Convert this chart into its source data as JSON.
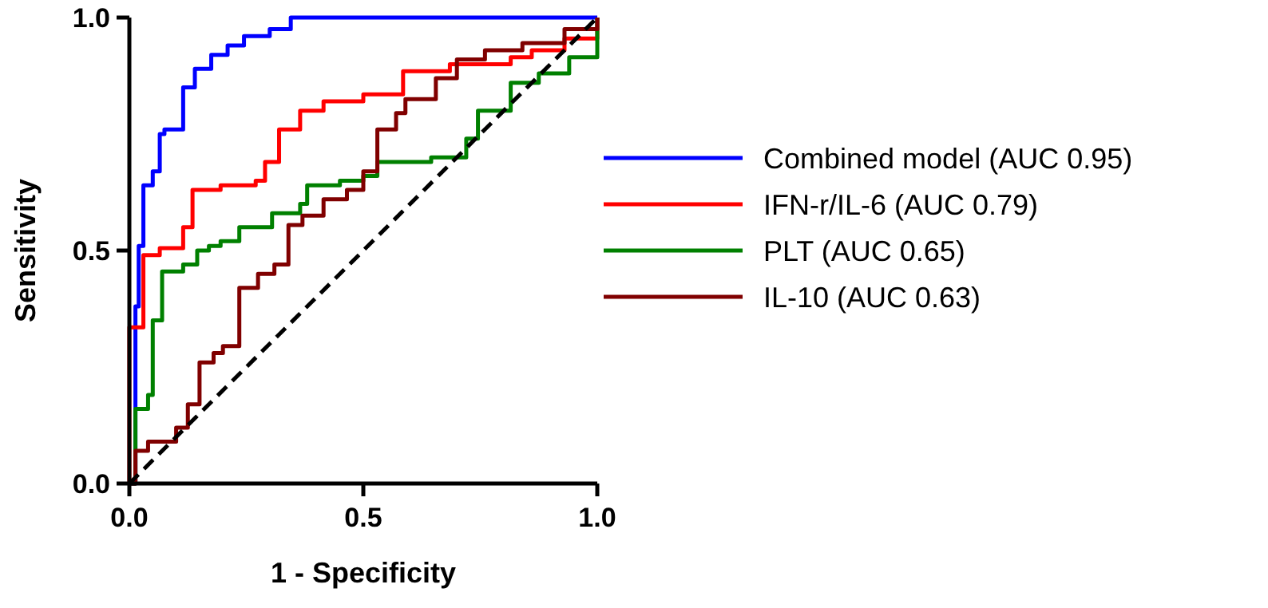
{
  "chart_data": {
    "type": "step",
    "xlabel": "1 - Specificity",
    "ylabel": "Sensitivity",
    "xlim": [
      0,
      1
    ],
    "ylim": [
      0,
      1
    ],
    "xticks": [
      {
        "value": 0,
        "label": "0.0"
      },
      {
        "value": 0.5,
        "label": "0.5"
      },
      {
        "value": 1,
        "label": "1.0"
      }
    ],
    "yticks": [
      {
        "value": 0,
        "label": "0.0"
      },
      {
        "value": 0.5,
        "label": "0.5"
      },
      {
        "value": 1,
        "label": "1.0"
      }
    ],
    "grid": false,
    "legend": "right",
    "marker": "none",
    "series": [
      {
        "name": "Combined model (AUC 0.95)",
        "color": "#0000ff",
        "x": [
          0,
          0.01,
          0.013,
          0.02,
          0.03,
          0.05,
          0.065,
          0.075,
          0.115,
          0.14,
          0.175,
          0.21,
          0.245,
          0.3,
          0.345,
          1
        ],
        "values": [
          0,
          0,
          0.38,
          0.51,
          0.64,
          0.67,
          0.75,
          0.76,
          0.85,
          0.89,
          0.92,
          0.94,
          0.96,
          0.975,
          1,
          1
        ]
      },
      {
        "name": "IFN-r/IL-6 (AUC 0.79)",
        "color": "#ff0000",
        "x": [
          0,
          0,
          0.03,
          0.065,
          0.115,
          0.135,
          0.195,
          0.27,
          0.29,
          0.32,
          0.365,
          0.415,
          0.5,
          0.585,
          0.685,
          0.815,
          0.86,
          0.93,
          1,
          1
        ],
        "values": [
          0,
          0.335,
          0.49,
          0.505,
          0.55,
          0.63,
          0.64,
          0.65,
          0.69,
          0.76,
          0.8,
          0.82,
          0.835,
          0.885,
          0.9,
          0.915,
          0.93,
          0.955,
          0.97,
          1
        ]
      },
      {
        "name": "PLT (AUC 0.65)",
        "color": "#008000",
        "x": [
          0,
          0.005,
          0.013,
          0.04,
          0.05,
          0.07,
          0.115,
          0.145,
          0.17,
          0.195,
          0.235,
          0.305,
          0.365,
          0.38,
          0.45,
          0.5,
          0.53,
          0.645,
          0.72,
          0.745,
          0.815,
          0.875,
          0.94,
          1,
          1
        ],
        "values": [
          0,
          0,
          0.16,
          0.19,
          0.35,
          0.455,
          0.47,
          0.5,
          0.51,
          0.52,
          0.55,
          0.58,
          0.6,
          0.64,
          0.65,
          0.66,
          0.69,
          0.7,
          0.74,
          0.8,
          0.86,
          0.88,
          0.915,
          0.94,
          1
        ]
      },
      {
        "name": "IL-10 (AUC 0.63)",
        "color": "#800000",
        "x": [
          0,
          0.013,
          0.04,
          0.1,
          0.125,
          0.15,
          0.18,
          0.2,
          0.235,
          0.275,
          0.31,
          0.34,
          0.37,
          0.415,
          0.465,
          0.5,
          0.53,
          0.57,
          0.59,
          0.655,
          0.7,
          0.76,
          0.84,
          0.93,
          1
        ],
        "values": [
          0,
          0.07,
          0.09,
          0.12,
          0.17,
          0.26,
          0.28,
          0.295,
          0.42,
          0.45,
          0.47,
          0.555,
          0.575,
          0.61,
          0.63,
          0.67,
          0.76,
          0.795,
          0.825,
          0.87,
          0.91,
          0.93,
          0.945,
          0.975,
          1
        ]
      },
      {
        "type": "line",
        "color": "#000000",
        "line_style": "dashed",
        "x": [
          0,
          1
        ],
        "values": [
          0,
          1
        ]
      }
    ]
  }
}
